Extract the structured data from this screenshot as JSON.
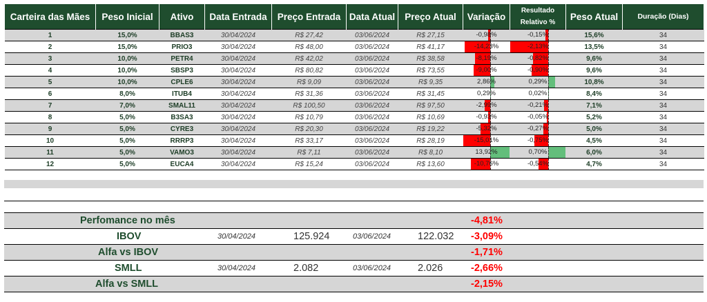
{
  "header": {
    "carteira": "Carteira das Mães",
    "peso_inicial": "Peso Inicial",
    "ativo": "Ativo",
    "data_entrada": "Data Entrada",
    "preco_entrada": "Preço Entrada",
    "data_atual": "Data Atual",
    "preco_atual": "Preço Atual",
    "variacao": "Variação",
    "resultado_line1": "Resultado",
    "resultado_line2": "Relativo %",
    "peso_atual": "Peso Atual",
    "duracao": "Duração (Dias)"
  },
  "rows": [
    {
      "n": "1",
      "peso_ini": "15,0%",
      "ativo": "BBAS3",
      "data_ent": "30/04/2024",
      "preco_ent": "R$ 27,42",
      "data_at": "03/06/2024",
      "preco_at": "R$ 27,15",
      "var": "-0,98%",
      "var_v": -0.98,
      "rel": "-0,15%",
      "rel_v": -0.15,
      "peso_at": "15,6%",
      "dur": "34"
    },
    {
      "n": "2",
      "peso_ini": "15,0%",
      "ativo": "PRIO3",
      "data_ent": "30/04/2024",
      "preco_ent": "R$ 48,00",
      "data_at": "03/06/2024",
      "preco_at": "R$ 41,17",
      "var": "-14,23%",
      "var_v": -14.23,
      "rel": "-2,13%",
      "rel_v": -2.13,
      "peso_at": "13,5%",
      "dur": "34"
    },
    {
      "n": "3",
      "peso_ini": "10,0%",
      "ativo": "PETR4",
      "data_ent": "30/04/2024",
      "preco_ent": "R$ 42,02",
      "data_at": "03/06/2024",
      "preco_at": "R$ 38,58",
      "var": "-8,19%",
      "var_v": -8.19,
      "rel": "-0,82%",
      "rel_v": -0.82,
      "peso_at": "9,6%",
      "dur": "34"
    },
    {
      "n": "4",
      "peso_ini": "10,0%",
      "ativo": "SBSP3",
      "data_ent": "30/04/2024",
      "preco_ent": "R$ 80,82",
      "data_at": "03/06/2024",
      "preco_at": "R$ 73,55",
      "var": "-9,00%",
      "var_v": -9.0,
      "rel": "-0,90%",
      "rel_v": -0.9,
      "peso_at": "9,6%",
      "dur": "34"
    },
    {
      "n": "5",
      "peso_ini": "10,0%",
      "ativo": "CPLE6",
      "data_ent": "30/04/2024",
      "preco_ent": "R$ 9,09",
      "data_at": "03/06/2024",
      "preco_at": "R$ 9,35",
      "var": "2,86%",
      "var_v": 2.86,
      "rel": "0,29%",
      "rel_v": 0.29,
      "peso_at": "10,8%",
      "dur": "34"
    },
    {
      "n": "6",
      "peso_ini": "8,0%",
      "ativo": "ITUB4",
      "data_ent": "30/04/2024",
      "preco_ent": "R$ 31,36",
      "data_at": "03/06/2024",
      "preco_at": "R$ 31,45",
      "var": "0,29%",
      "var_v": 0.29,
      "rel": "0,02%",
      "rel_v": 0.02,
      "peso_at": "8,4%",
      "dur": "34"
    },
    {
      "n": "7",
      "peso_ini": "7,0%",
      "ativo": "SMAL11",
      "data_ent": "30/04/2024",
      "preco_ent": "R$ 100,50",
      "data_at": "03/06/2024",
      "preco_at": "R$ 97,50",
      "var": "-2,99%",
      "var_v": -2.99,
      "rel": "-0,21%",
      "rel_v": -0.21,
      "peso_at": "7,1%",
      "dur": "34"
    },
    {
      "n": "8",
      "peso_ini": "5,0%",
      "ativo": "B3SA3",
      "data_ent": "30/04/2024",
      "preco_ent": "R$ 10,79",
      "data_at": "03/06/2024",
      "preco_at": "R$ 10,69",
      "var": "-0,93%",
      "var_v": -0.93,
      "rel": "-0,05%",
      "rel_v": -0.05,
      "peso_at": "5,2%",
      "dur": "34"
    },
    {
      "n": "9",
      "peso_ini": "5,0%",
      "ativo": "CYRE3",
      "data_ent": "30/04/2024",
      "preco_ent": "R$ 20,30",
      "data_at": "03/06/2024",
      "preco_at": "R$ 19,22",
      "var": "-5,32%",
      "var_v": -5.32,
      "rel": "-0,27%",
      "rel_v": -0.27,
      "peso_at": "5,0%",
      "dur": "34"
    },
    {
      "n": "10",
      "peso_ini": "5,0%",
      "ativo": "RRRP3",
      "data_ent": "30/04/2024",
      "preco_ent": "R$ 33,17",
      "data_at": "03/06/2024",
      "preco_at": "R$ 28,19",
      "var": "-15,01%",
      "var_v": -15.01,
      "rel": "-0,75%",
      "rel_v": -0.75,
      "peso_at": "4,5%",
      "dur": "34"
    },
    {
      "n": "11",
      "peso_ini": "5,0%",
      "ativo": "VAMO3",
      "data_ent": "30/04/2024",
      "preco_ent": "R$ 7,11",
      "data_at": "03/06/2024",
      "preco_at": "R$ 8,10",
      "var": "13,92%",
      "var_v": 13.92,
      "rel": "0,70%",
      "rel_v": 0.7,
      "peso_at": "6,0%",
      "dur": "34"
    },
    {
      "n": "12",
      "peso_ini": "5,0%",
      "ativo": "EUCA4",
      "data_ent": "30/04/2024",
      "preco_ent": "R$ 15,24",
      "data_at": "03/06/2024",
      "preco_at": "R$ 13,60",
      "var": "-10,76%",
      "var_v": -10.76,
      "rel": "-0,54%",
      "rel_v": -0.54,
      "peso_at": "4,7%",
      "dur": "34"
    }
  ],
  "summary": {
    "performance": {
      "label": "Perfomance no mês",
      "pct": "-4,81%"
    },
    "ibov": {
      "label": "IBOV",
      "data1": "30/04/2024",
      "v1": "125.924",
      "data2": "03/06/2024",
      "v2": "122.032",
      "pct": "-3,09%"
    },
    "alfa_ibov": {
      "label": "Alfa vs IBOV",
      "pct": "-1,71%"
    },
    "smll": {
      "label": "SMLL",
      "data1": "30/04/2024",
      "v1": "2.082",
      "data2": "03/06/2024",
      "v2": "2.026",
      "pct": "-2,66%"
    },
    "alfa_smll": {
      "label": "Alfa vs SMLL",
      "pct": "-2,15%"
    }
  },
  "colors": {
    "header_bg": "#1f4d2e",
    "negative": "#ff0000",
    "positive": "#63be7b",
    "row_alt": "#d6d6d6"
  }
}
